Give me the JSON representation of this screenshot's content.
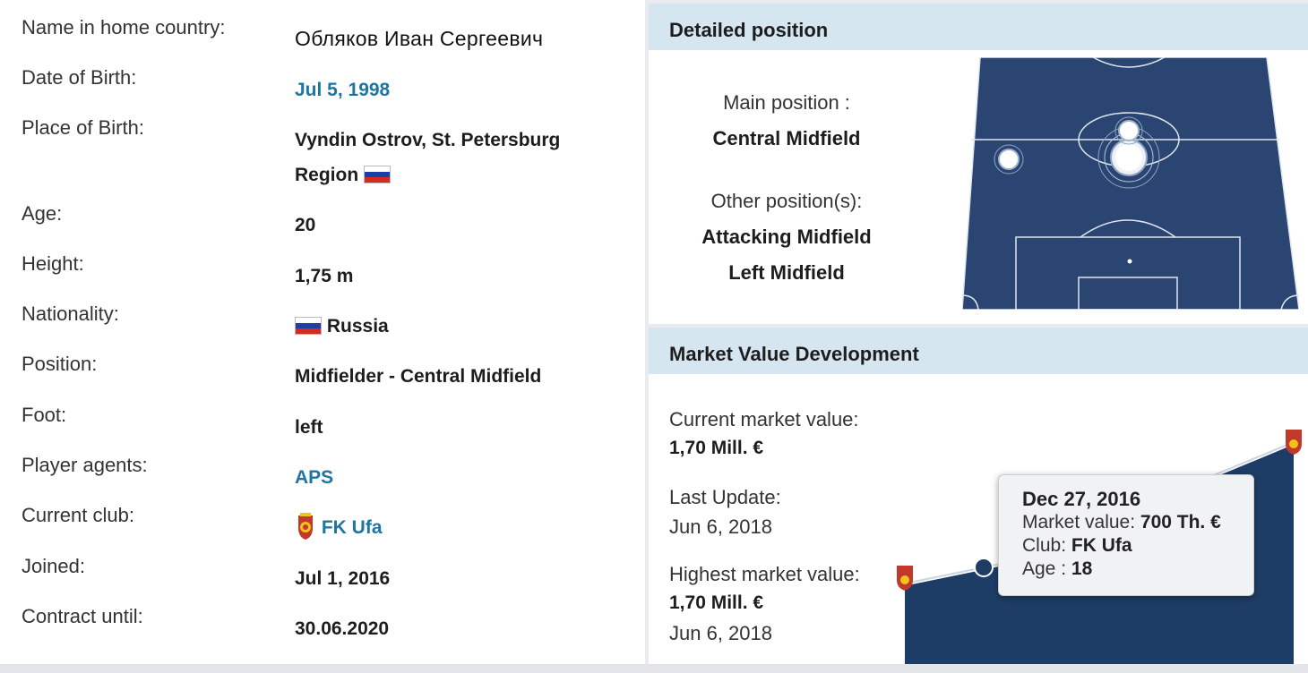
{
  "profile": {
    "name_label": "Name in home country:",
    "name_value": "Обляков Иван Сергеевич",
    "dob_label": "Date of Birth:",
    "dob_value": "Jul 5, 1998",
    "pob_label": "Place of Birth:",
    "pob_value_line1": "Vyndin Ostrov, St. Petersburg",
    "pob_value_line2": "Region",
    "age_label": "Age:",
    "age_value": "20",
    "height_label": "Height:",
    "height_value": "1,75 m",
    "nationality_label": "Nationality:",
    "nationality_value": "Russia",
    "position_label": "Position:",
    "position_value": "Midfielder - Central Midfield",
    "foot_label": "Foot:",
    "foot_value": "left",
    "agents_label": "Player agents:",
    "agents_value": "APS",
    "club_label": "Current club:",
    "club_value": "FK Ufa",
    "joined_label": "Joined:",
    "joined_value": "Jul 1, 2016",
    "contract_label": "Contract until:",
    "contract_value": "30.06.2020"
  },
  "detailed_position": {
    "title": "Detailed position",
    "main_label": "Main position :",
    "main_value": "Central Midfield",
    "other_label": "Other position(s):",
    "other_values": [
      "Attacking Midfield",
      "Left Midfield"
    ]
  },
  "market_value": {
    "title": "Market Value Development",
    "current_label": "Current market value:",
    "current_value": "1,70 Mill. €",
    "last_update_label": "Last Update:",
    "last_update_value": "Jun 6, 2018",
    "highest_label": "Highest market value:",
    "highest_value": "1,70 Mill. €",
    "highest_date": "Jun 6, 2018",
    "tooltip": {
      "date": "Dec 27, 2016",
      "mv_label": "Market value:",
      "mv_value": "700 Th. €",
      "club_label": "Club:",
      "club_value": "FK Ufa",
      "age_label": "Age :",
      "age_value": "18"
    }
  },
  "colors": {
    "link": "#1d75a3",
    "header_bg": "#d6e6f0",
    "pitch": "#2a4572",
    "chart_fill": "#1e3d66"
  }
}
